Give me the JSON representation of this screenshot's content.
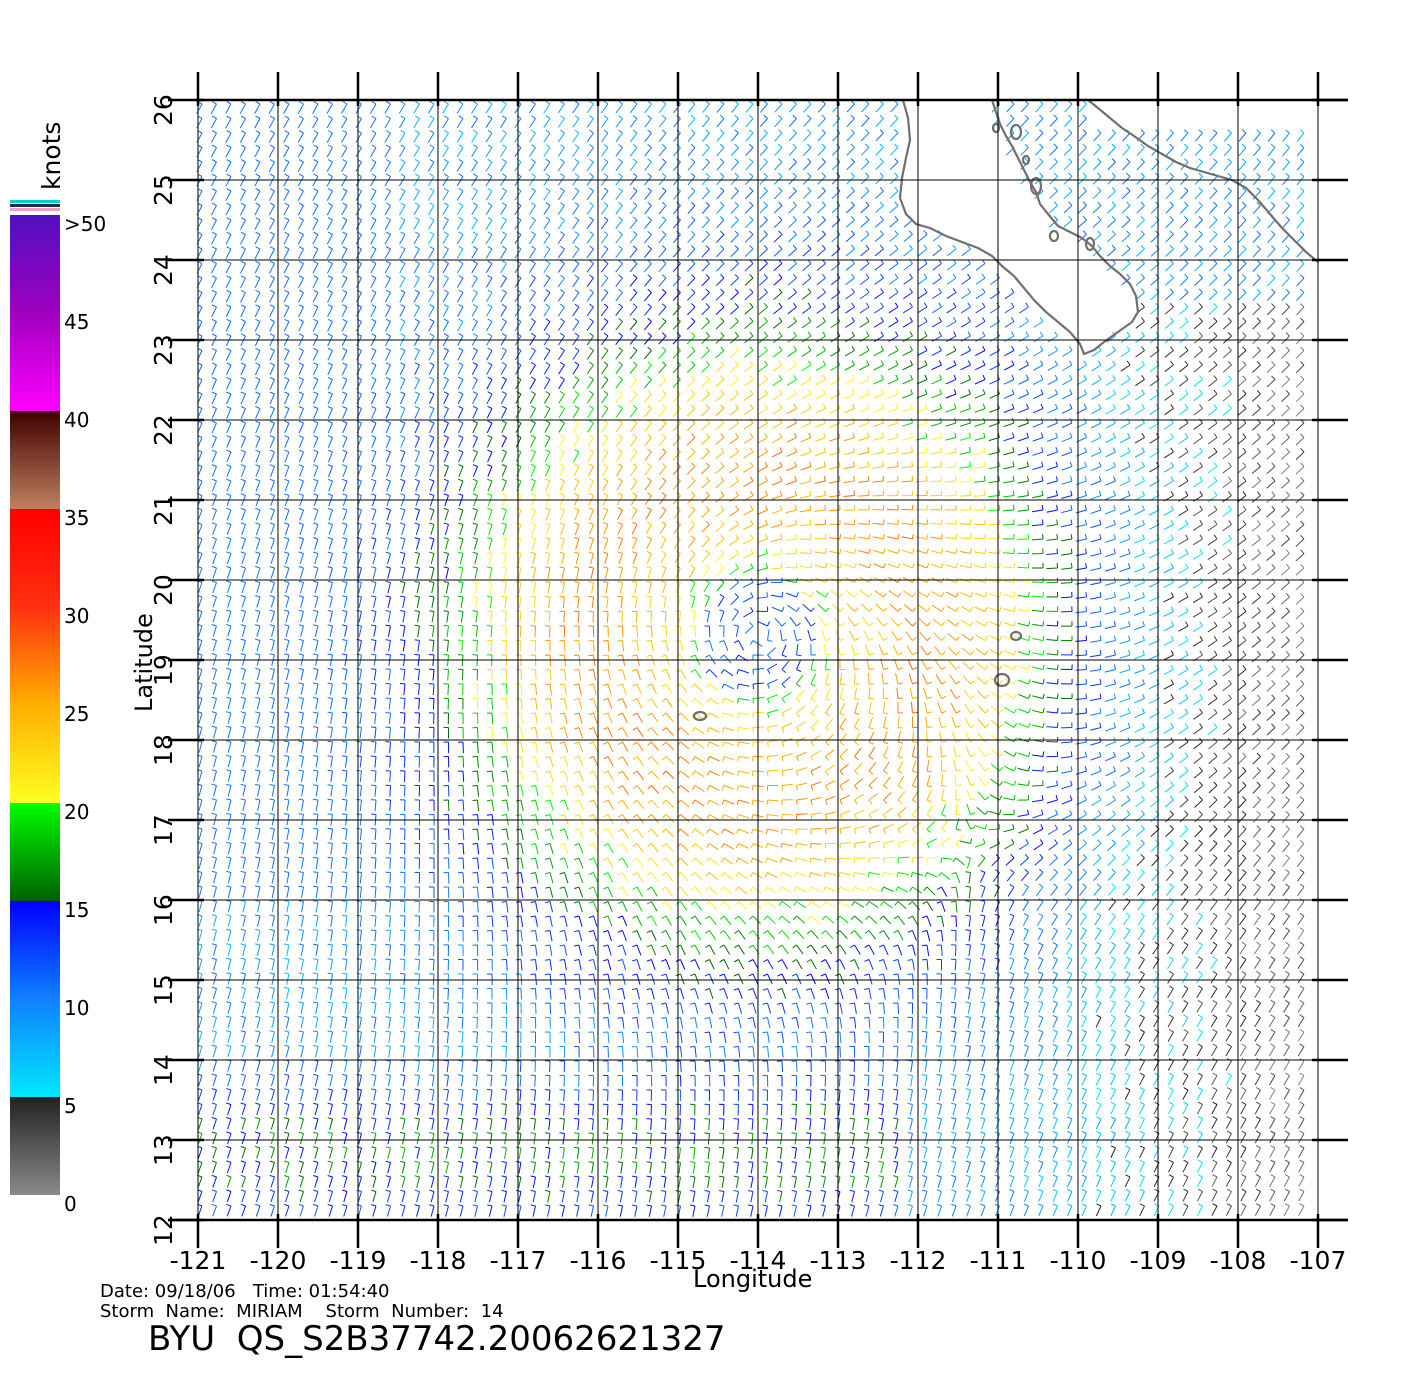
{
  "colorbar": {
    "unit": "knots",
    "labels": [
      ">50",
      "45",
      "40",
      "35",
      "30",
      "25",
      "20",
      "15",
      "10",
      "5",
      "0"
    ],
    "stops": [
      {
        "knots": 0,
        "color": "#8a8a8a"
      },
      {
        "knots": 5,
        "color": "#222222"
      },
      {
        "knots": 5,
        "color": "#00e8ff"
      },
      {
        "knots": 10,
        "color": "#1080ff"
      },
      {
        "knots": 15,
        "color": "#0000ff"
      },
      {
        "knots": 15,
        "color": "#006000"
      },
      {
        "knots": 20,
        "color": "#00ff00"
      },
      {
        "knots": 20,
        "color": "#ffff20"
      },
      {
        "knots": 25,
        "color": "#ffb000"
      },
      {
        "knots": 30,
        "color": "#ff3010"
      },
      {
        "knots": 35,
        "color": "#ff0000"
      },
      {
        "knots": 35,
        "color": "#c08060"
      },
      {
        "knots": 40,
        "color": "#400000"
      },
      {
        "knots": 40,
        "color": "#ff00ff"
      },
      {
        "knots": 45,
        "color": "#a000c0"
      },
      {
        "knots": 50,
        "color": "#5010c0"
      }
    ]
  },
  "map": {
    "lon_range": [
      -121,
      -107
    ],
    "lat_range": [
      12,
      26
    ],
    "lon_ticks": [
      "-121",
      "-120",
      "-119",
      "-118",
      "-117",
      "-116",
      "-115",
      "-114",
      "-113",
      "-112",
      "-111",
      "-110",
      "-109",
      "-108",
      "-107"
    ],
    "lat_ticks": [
      "12",
      "13",
      "14",
      "15",
      "16",
      "17",
      "18",
      "19",
      "20",
      "21",
      "22",
      "23",
      "24",
      "25",
      "26"
    ],
    "xlabel": "Longitude",
    "ylabel": "Latitude",
    "storm_center": {
      "lon": -114.0,
      "lat": 19.3
    },
    "coast_color": "#707070"
  },
  "footer": {
    "date_line": "Date: 09/18/06   Time: 01:54:40",
    "storm_line": "Storm  Name:  MIRIAM    Storm  Number:  14",
    "product": "BYU  QS_S2B37742.20062621327"
  }
}
